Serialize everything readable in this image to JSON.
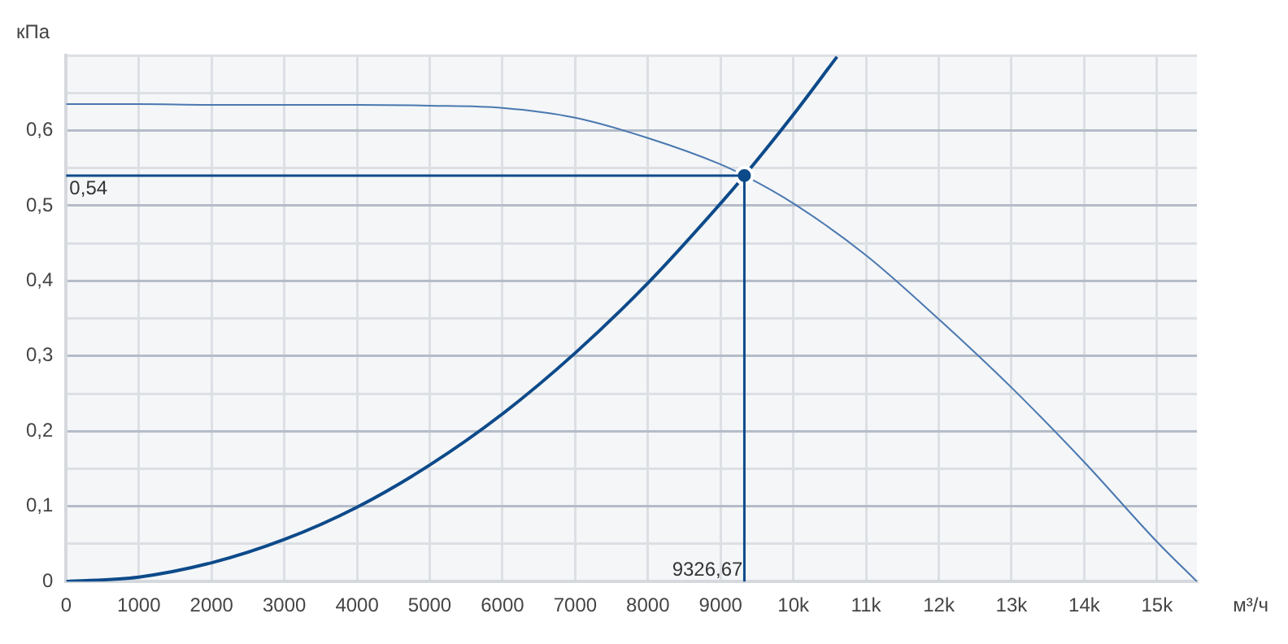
{
  "chart_data": {
    "type": "line",
    "ylabel": "кПа",
    "xlabel": "м³/ч",
    "xlim": [
      0,
      15550
    ],
    "ylim": [
      0,
      0.7
    ],
    "xticks": [
      0,
      1000,
      2000,
      3000,
      4000,
      5000,
      6000,
      7000,
      8000,
      9000,
      {
        "value": 10000,
        "label": "10k"
      },
      {
        "value": 11000,
        "label": "11k"
      },
      {
        "value": 12000,
        "label": "12k"
      },
      {
        "value": 13000,
        "label": "13k"
      },
      {
        "value": 14000,
        "label": "14k"
      },
      {
        "value": 15000,
        "label": "15k"
      }
    ],
    "yticks": [
      0,
      {
        "value": 0.05,
        "label": null
      },
      {
        "value": 0.1,
        "label": "0,1"
      },
      {
        "value": 0.15,
        "label": null
      },
      {
        "value": 0.2,
        "label": "0,2"
      },
      {
        "value": 0.25,
        "label": null
      },
      {
        "value": 0.3,
        "label": "0,3"
      },
      {
        "value": 0.35,
        "label": null
      },
      {
        "value": 0.4,
        "label": "0,4"
      },
      {
        "value": 0.45,
        "label": null
      },
      {
        "value": 0.5,
        "label": "0,5"
      },
      {
        "value": 0.55,
        "label": null
      },
      {
        "value": 0.6,
        "label": "0,6"
      },
      {
        "value": 0.65,
        "label": null
      },
      {
        "value": 0.7,
        "label": null
      }
    ],
    "grid": true,
    "legend": false,
    "marker": "none",
    "line_style": "solid",
    "series": [
      {
        "type": "line",
        "color": "#4a78b0",
        "x": [
          0,
          1000,
          2000,
          3000,
          4000,
          5000,
          6000,
          7000,
          8000,
          9000,
          9326.67,
          10000,
          11000,
          12000,
          13000,
          14000,
          15000,
          15550
        ],
        "values": [
          0.635,
          0.635,
          0.634,
          0.634,
          0.634,
          0.633,
          0.63,
          0.617,
          0.59,
          0.555,
          0.54,
          0.503,
          0.434,
          0.349,
          0.258,
          0.159,
          0.053,
          0
        ]
      },
      {
        "type": "line",
        "color": "#0d4a8a",
        "x": [
          0,
          1000,
          2000,
          3000,
          4000,
          5000,
          6000,
          7000,
          8000,
          9000,
          9326.67,
          10000,
          10600
        ],
        "values": [
          0,
          0.006,
          0.025,
          0.056,
          0.099,
          0.155,
          0.223,
          0.304,
          0.397,
          0.503,
          0.54,
          0.621,
          0.698
        ]
      },
      {
        "type": "scatter",
        "color": "#0d4a8a",
        "marker": "circle",
        "x": [
          9326.67
        ],
        "values": [
          0.54
        ]
      }
    ],
    "ref_lines": [
      {
        "axis": "y",
        "value": 0.54,
        "label": "0,54",
        "color": "#0d4a8a"
      },
      {
        "axis": "x",
        "value": 9326.67,
        "label": "9326,67",
        "color": "#0d4a8a"
      }
    ]
  }
}
